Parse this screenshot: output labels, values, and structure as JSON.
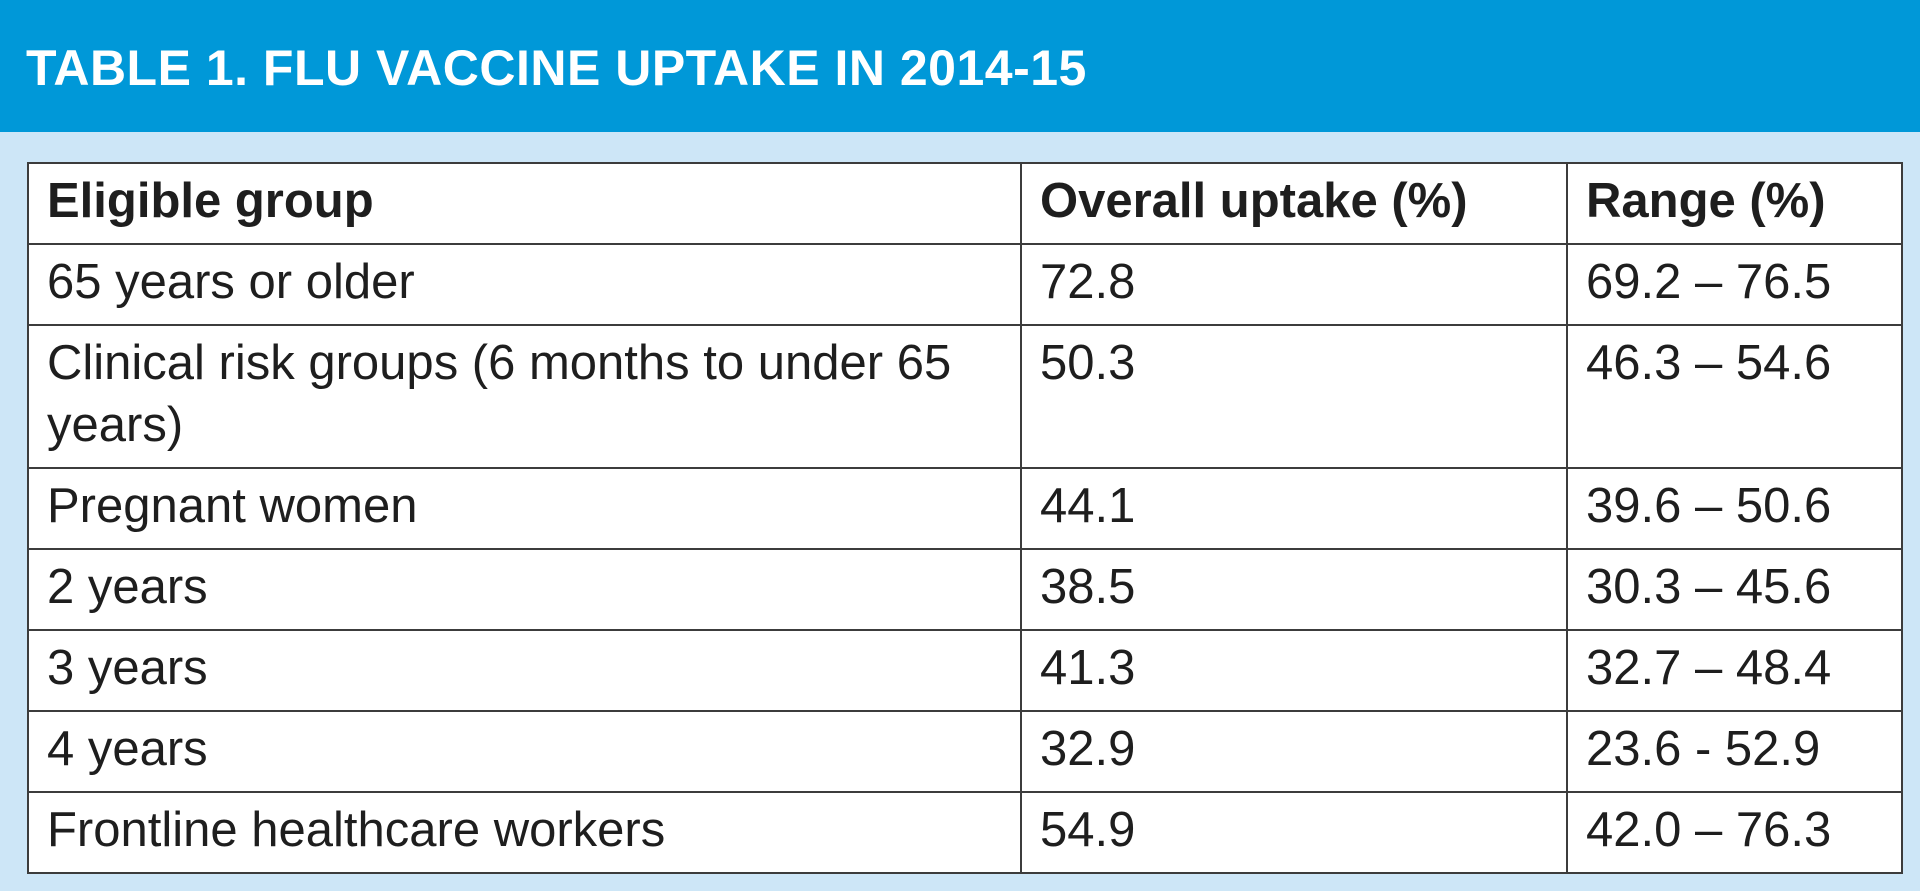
{
  "title": "TABLE 1. FLU VACCINE UPTAKE IN 2014-15",
  "colors": {
    "banner": "#0098d8",
    "background": "#cde6f7",
    "table_border": "#3c3c3c",
    "text": "#1e1e1e"
  },
  "table": {
    "headers": [
      "Eligible group",
      "Overall uptake (%)",
      "Range (%)"
    ],
    "rows": [
      {
        "group": "65 years or older",
        "uptake": "72.8",
        "range": "69.2 – 76.5"
      },
      {
        "group": "Clinical risk groups (6 months to under 65 years)",
        "uptake": "50.3",
        "range": "46.3 – 54.6"
      },
      {
        "group": "Pregnant women",
        "uptake": "44.1",
        "range": "39.6 – 50.6"
      },
      {
        "group": "2 years",
        "uptake": "38.5",
        "range": "30.3 – 45.6"
      },
      {
        "group": "3 years",
        "uptake": "41.3",
        "range": "32.7 – 48.4"
      },
      {
        "group": "4 years",
        "uptake": "32.9",
        "range": "23.6 - 52.9"
      },
      {
        "group": "Frontline healthcare workers",
        "uptake": "54.9",
        "range": "42.0 – 76.3"
      }
    ]
  }
}
